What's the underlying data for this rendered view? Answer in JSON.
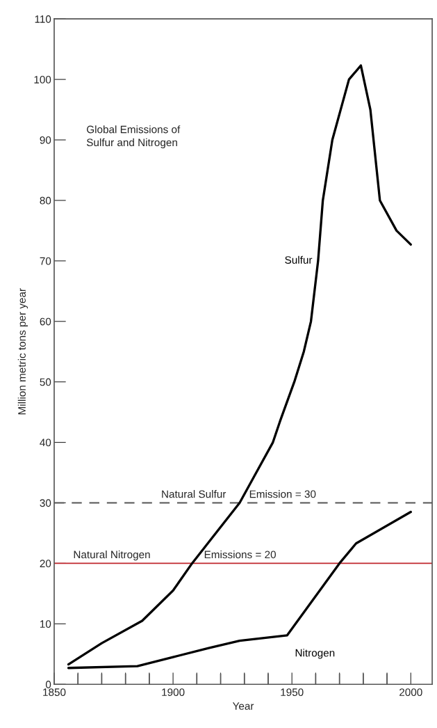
{
  "chart_data": {
    "type": "line",
    "title": "Global Emissions of\nSulfur and Nitrogen",
    "xlabel": "Year",
    "ylabel": "Million metric tons per year",
    "xlim": [
      1850,
      2009
    ],
    "ylim": [
      0,
      110
    ],
    "xticks": [
      1850,
      {
        "value": 1860,
        "label": null
      },
      {
        "value": 1870,
        "label": null
      },
      {
        "value": 1880,
        "label": null
      },
      {
        "value": 1890,
        "label": null
      },
      1900,
      {
        "value": 1910,
        "label": null
      },
      {
        "value": 1920,
        "label": null
      },
      {
        "value": 1930,
        "label": null
      },
      {
        "value": 1940,
        "label": null
      },
      1950,
      {
        "value": 1960,
        "label": null
      },
      {
        "value": 1970,
        "label": null
      },
      {
        "value": 1980,
        "label": null
      },
      {
        "value": 1990,
        "label": null
      },
      2000
    ],
    "yticks": [
      0,
      10,
      20,
      30,
      40,
      50,
      60,
      70,
      80,
      90,
      100,
      110
    ],
    "grid": false,
    "marker": "none",
    "line_style": "solid",
    "series": [
      {
        "name": "Sulfur",
        "color": "#000000",
        "x": [
          1856,
          1870,
          1887,
          1900,
          1908,
          1915,
          1928,
          1935,
          1942,
          1945,
          1951,
          1955,
          1958,
          1961,
          1963,
          1967,
          1974,
          1979,
          1983,
          1987,
          1994,
          2000
        ],
        "values": [
          3.3,
          6.8,
          10.5,
          15.5,
          20,
          23.5,
          30,
          35,
          40,
          43.5,
          50,
          55,
          60,
          70,
          80,
          90,
          100,
          102.3,
          95,
          80,
          75,
          72.7
        ]
      },
      {
        "name": "Nitrogen",
        "color": "#000000",
        "x": [
          1856,
          1885,
          1900,
          1915,
          1928,
          1948,
          1970,
          1977,
          2000
        ],
        "values": [
          2.7,
          3.0,
          4.5,
          6.0,
          7.2,
          8.1,
          20,
          23.3,
          28.5
        ]
      }
    ],
    "ref_lines": [
      {
        "axis": "y",
        "value": 30,
        "color": "#555555",
        "line_style": "dashed"
      },
      {
        "axis": "y",
        "value": 20,
        "color": "#c0272d",
        "line_style": "solid"
      }
    ],
    "annotations": [
      {
        "text": "Natural Sulfur",
        "x": 1895,
        "y": 30
      },
      {
        "text": "Emission = 30",
        "x": 1932,
        "y": 30
      },
      {
        "text": "Natural Nitrogen",
        "x": 1858,
        "y": 20
      },
      {
        "text": "Emissions = 20",
        "x": 1913,
        "y": 20
      }
    ]
  }
}
